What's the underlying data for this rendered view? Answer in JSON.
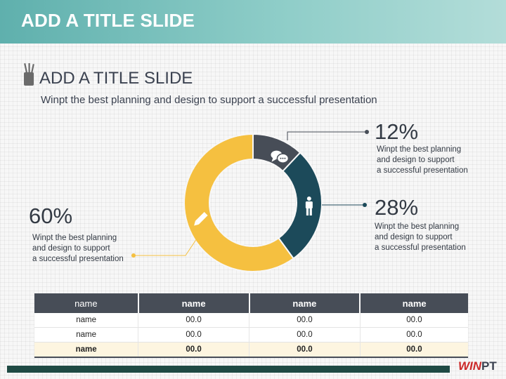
{
  "header": {
    "title": "ADD A TITLE SLIDE"
  },
  "section": {
    "title": "ADD A TITLE SLIDE",
    "subtitle": "Winpt the best planning and design to support a successful presentation",
    "icon": "pencil-cup-icon"
  },
  "chart_data": {
    "type": "pie",
    "variant": "donut",
    "slices": [
      {
        "value": 12,
        "label": "12%",
        "color": "#474d57",
        "icon": "chat-bubbles-icon",
        "description": "Winpt the best planning\nand design to support\na successful presentation"
      },
      {
        "value": 28,
        "label": "28%",
        "color": "#1c4a5a",
        "icon": "person-icon",
        "description": "Winpt the best planning\nand design to support\na successful presentation"
      },
      {
        "value": 60,
        "label": "60%",
        "color": "#f5c040",
        "icon": "pencil-icon",
        "description": "Winpt the best planning\nand design to support\na successful presentation"
      }
    ]
  },
  "table": {
    "headers": [
      "name",
      "name",
      "name",
      "name"
    ],
    "rows": [
      [
        "name",
        "00.0",
        "00.0",
        "00.0"
      ],
      [
        "name",
        "00.0",
        "00.0",
        "00.0"
      ]
    ],
    "total": [
      "name",
      "00.0",
      "00.0",
      "00.0"
    ]
  },
  "footer": {
    "logo_win": "WIN",
    "logo_pt": "PT"
  },
  "colors": {
    "accent_teal": "#5fb0ad",
    "dark": "#474d57",
    "navy": "#1c4a5a",
    "yellow": "#f5c040"
  }
}
